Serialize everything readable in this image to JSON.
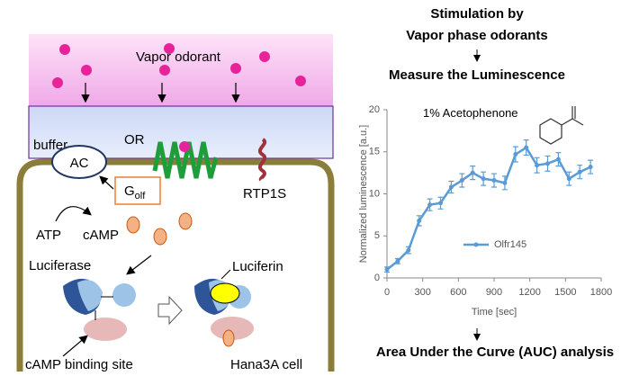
{
  "diagram": {
    "vapor": "Vapor odorant",
    "buffer": "buffer",
    "or": "OR",
    "ac": "AC",
    "golf": "G",
    "golf_sub": "olf",
    "rtp": "RTP1S",
    "atp": "ATP",
    "camp": "cAMP",
    "luciferase": "Luciferase",
    "luciferin": "Luciferin",
    "binding": "cAMP binding site",
    "cell": "Hana3A cell"
  },
  "flow": {
    "step1": [
      "Stimulation by",
      "Vapor phase odorants"
    ],
    "step2": "Measure the Luminescence",
    "step3": "Area Under the Curve (AUC) analysis"
  },
  "chart_data": {
    "type": "line",
    "annotation": "1% Acetophenone",
    "y_label": "Normalized luminescence [a.u.]",
    "x_label": "Time [sec]",
    "x": [
      0,
      90,
      180,
      270,
      360,
      450,
      540,
      630,
      720,
      810,
      900,
      990,
      1080,
      1170,
      1260,
      1350,
      1440,
      1530,
      1620,
      1710
    ],
    "series": [
      {
        "name": "Olfr145",
        "color": "#5b9bd5",
        "values": [
          1.0,
          2.0,
          3.3,
          6.8,
          8.7,
          8.9,
          10.8,
          11.6,
          12.5,
          11.8,
          11.6,
          11.3,
          14.7,
          15.5,
          13.4,
          13.6,
          14.1,
          11.8,
          12.6,
          13.2
        ],
        "errors": [
          0.3,
          0.3,
          0.4,
          0.6,
          0.7,
          0.7,
          0.7,
          0.8,
          0.8,
          0.8,
          0.8,
          0.8,
          0.9,
          0.9,
          0.9,
          0.9,
          0.8,
          0.8,
          0.8,
          0.8
        ]
      }
    ],
    "xlim": [
      0,
      1800
    ],
    "xticks": [
      0,
      300,
      600,
      900,
      1200,
      1500,
      1800
    ],
    "ylim": [
      0,
      20
    ],
    "yticks": [
      0,
      5,
      10,
      15,
      20
    ],
    "grid": false,
    "legend": "lower-right"
  }
}
